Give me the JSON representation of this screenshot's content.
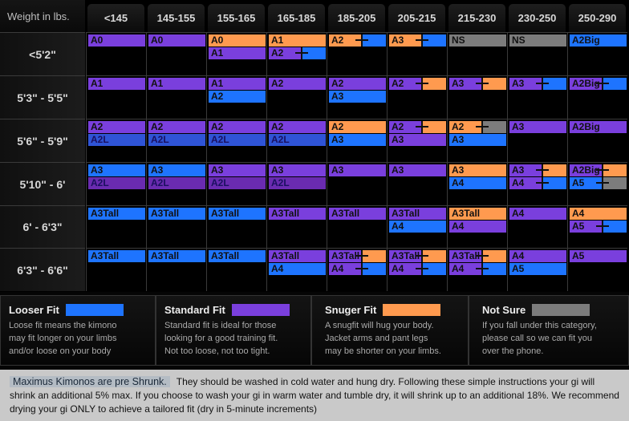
{
  "colors": {
    "B": "#1e74ff",
    "P": "#7a3fdd",
    "O": "#ff9a4f",
    "G": "#7c7c7c",
    "D": "#2f54d6",
    "M": "#6a2bb0"
  },
  "header": {
    "corner": "Weight in lbs.",
    "weights": [
      "<145",
      "145-155",
      "155-165",
      "165-185",
      "185-205",
      "205-215",
      "215-230",
      "230-250",
      "250-290"
    ]
  },
  "rows": [
    {
      "height": "<5'2\"",
      "cells": [
        [
          [
            "A0",
            "P"
          ]
        ],
        [
          [
            "A0",
            "P"
          ]
        ],
        [
          [
            "A0",
            "O"
          ],
          [
            "A1",
            "P"
          ]
        ],
        [
          [
            "A1",
            "O"
          ],
          [
            "A2",
            "P",
            "B"
          ]
        ],
        [
          [
            "A2",
            "O",
            "B"
          ]
        ],
        [
          [
            "A3",
            "O",
            "B"
          ]
        ],
        [
          [
            "NS",
            "G"
          ]
        ],
        [
          [
            "NS",
            "G"
          ]
        ],
        [
          [
            "A2Big",
            "B"
          ]
        ]
      ]
    },
    {
      "height": "5'3\" - 5'5\"",
      "cells": [
        [
          [
            "A1",
            "P"
          ]
        ],
        [
          [
            "A1",
            "P"
          ]
        ],
        [
          [
            "A1",
            "P"
          ],
          [
            "A2",
            "B"
          ]
        ],
        [
          [
            "A2",
            "P"
          ]
        ],
        [
          [
            "A2",
            "P"
          ],
          [
            "A3",
            "B"
          ]
        ],
        [
          [
            "A2",
            "P",
            "O"
          ]
        ],
        [
          [
            "A3",
            "P",
            "O"
          ]
        ],
        [
          [
            "A3",
            "P",
            "B"
          ]
        ],
        [
          [
            "A2Big",
            "P",
            "B"
          ]
        ]
      ]
    },
    {
      "height": "5'6\" - 5'9\"",
      "cells": [
        [
          [
            "A2",
            "P"
          ],
          [
            "A2L",
            "D"
          ]
        ],
        [
          [
            "A2",
            "P"
          ],
          [
            "A2L",
            "D"
          ]
        ],
        [
          [
            "A2",
            "P"
          ],
          [
            "A2L",
            "D"
          ]
        ],
        [
          [
            "A2",
            "P"
          ],
          [
            "A2L",
            "D"
          ]
        ],
        [
          [
            "A2",
            "O"
          ],
          [
            "A3",
            "B"
          ]
        ],
        [
          [
            "A2",
            "P",
            "O"
          ],
          [
            "A3",
            "P"
          ]
        ],
        [
          [
            "A2",
            "O",
            "G"
          ],
          [
            "A3",
            "B"
          ]
        ],
        [
          [
            "A3",
            "P"
          ]
        ],
        [
          [
            "A2Big",
            "P"
          ]
        ]
      ]
    },
    {
      "height": "5'10\" - 6'",
      "cells": [
        [
          [
            "A3",
            "B"
          ],
          [
            "A2L",
            "M"
          ]
        ],
        [
          [
            "A3",
            "B"
          ],
          [
            "A2L",
            "M"
          ]
        ],
        [
          [
            "A3",
            "P"
          ],
          [
            "A2L",
            "M"
          ]
        ],
        [
          [
            "A3",
            "P"
          ],
          [
            "A2L",
            "M"
          ]
        ],
        [
          [
            "A3",
            "P"
          ]
        ],
        [
          [
            "A3",
            "P"
          ]
        ],
        [
          [
            "A3",
            "O"
          ],
          [
            "A4",
            "B"
          ]
        ],
        [
          [
            "A3",
            "P",
            "O"
          ],
          [
            "A4",
            "P",
            "B"
          ]
        ],
        [
          [
            "A2Big",
            "P",
            "O"
          ],
          [
            "A5",
            "B",
            "G"
          ]
        ]
      ]
    },
    {
      "height": "6' - 6'3\"",
      "cells": [
        [
          [
            "A3Tall",
            "B"
          ]
        ],
        [
          [
            "A3Tall",
            "B"
          ]
        ],
        [
          [
            "A3Tall",
            "B"
          ]
        ],
        [
          [
            "A3Tall",
            "P"
          ]
        ],
        [
          [
            "A3Tall",
            "P"
          ]
        ],
        [
          [
            "A3Tall",
            "P"
          ],
          [
            "A4",
            "B"
          ]
        ],
        [
          [
            "A3Tall",
            "O"
          ],
          [
            "A4",
            "P"
          ]
        ],
        [
          [
            "A4",
            "P"
          ]
        ],
        [
          [
            "A4",
            "O"
          ],
          [
            "A5",
            "P",
            "B"
          ]
        ]
      ]
    },
    {
      "height": "6'3\" - 6'6\"",
      "cells": [
        [
          [
            "A3Tall",
            "B"
          ]
        ],
        [
          [
            "A3Tall",
            "B"
          ]
        ],
        [
          [
            "A3Tall",
            "B"
          ]
        ],
        [
          [
            "A3Tall",
            "P"
          ],
          [
            "A4",
            "B"
          ]
        ],
        [
          [
            "A3Tall",
            "P",
            "O"
          ],
          [
            "A4",
            "P",
            "B"
          ]
        ],
        [
          [
            "A3Tall",
            "P",
            "O"
          ],
          [
            "A4",
            "P",
            "B"
          ]
        ],
        [
          [
            "A3Tall",
            "P",
            "O"
          ],
          [
            "A4",
            "P",
            "B"
          ]
        ],
        [
          [
            "A4",
            "P"
          ],
          [
            "A5",
            "B"
          ]
        ],
        [
          [
            "A5",
            "P"
          ]
        ]
      ]
    }
  ],
  "legend": [
    {
      "title": "Looser Fit",
      "color": "#1e74ff",
      "text": "Loose fit means the kimono may fit longer on your limbs and/or loose on your body"
    },
    {
      "title": "Standard Fit",
      "color": "#7a3fdd",
      "text": "Standard fit is ideal for those looking for a good training fit. Not too loose, not too tight."
    },
    {
      "title": "Snuger Fit",
      "color": "#ff9a4f",
      "text": "A snugfit will hug your body. Jacket arms and pant legs may be shorter on your limbs."
    },
    {
      "title": "Not Sure",
      "color": "#7c7c7c",
      "text": "If you fall under this category, please call so we can fit you over the phone."
    }
  ],
  "note": {
    "headline": "Maximus Kimonos are pre Shrunk.",
    "body": "They should be washed in cold water and hung dry. Following these simple instructions your gi will shrink an additional 5% max. If you choose to wash your gi in warm water and tumble dry, it will shrink up to an additional 18%. We recommend drying your gi ONLY to achieve a tailored fit (dry in 5-minute increments)"
  }
}
